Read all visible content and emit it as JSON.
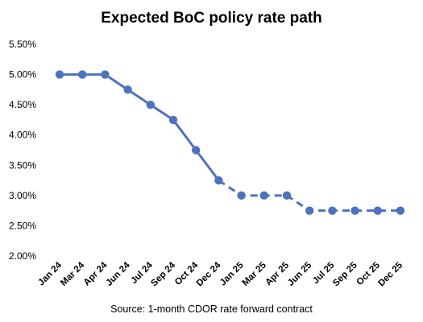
{
  "chart_data": {
    "type": "line",
    "title": "Expected BoC policy rate path",
    "source": "Source: 1-month CDOR rate forward contract",
    "categories": [
      "Jan 24",
      "Mar 24",
      "Apr 24",
      "Jun 24",
      "Jul 24",
      "Sep 24",
      "Oct 24",
      "Dec 24",
      "Jan 25",
      "Mar 25",
      "Apr 25",
      "Jun 25",
      "Jul 25",
      "Sep 25",
      "Oct 25",
      "Dec 25"
    ],
    "series": [
      {
        "values": [
          5.0,
          5.0,
          5.0,
          4.75,
          4.5,
          4.25,
          3.75,
          3.25,
          3.0,
          3.0,
          3.0,
          2.75,
          2.75,
          2.75,
          2.75,
          2.75
        ],
        "solid_through_index": 7,
        "color": "#4f72be"
      }
    ],
    "ylim": [
      2.0,
      5.5
    ],
    "yticks": [
      2.0,
      2.5,
      3.0,
      3.5,
      4.0,
      4.5,
      5.0,
      5.5
    ],
    "ytick_labels": [
      "2.00%",
      "2.50%",
      "3.00%",
      "3.50%",
      "4.00%",
      "4.50%",
      "5.00%",
      "5.50%"
    ],
    "xlabel": "",
    "ylabel": "",
    "grid": false,
    "legend": "none"
  }
}
